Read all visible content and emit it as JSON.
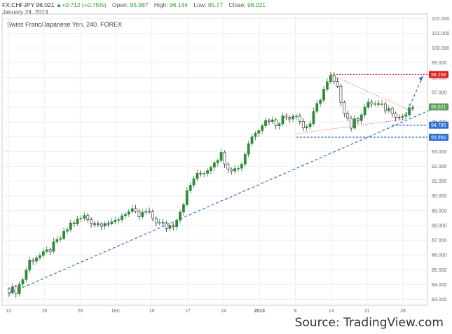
{
  "header": {
    "symbol": "FX:CHFJPY",
    "last": "96.021",
    "change": "+0.712 (+0.75%)",
    "open_label": "Open:",
    "open": "95.987",
    "high_label": "High:",
    "high": "96.144",
    "low_label": "Low:",
    "low": "95.77",
    "close_label": "Close:",
    "close": "96.021",
    "date": "January 24, 2013"
  },
  "chart_title": "Swiss Franc/Japanese Yen, 240, FOREX",
  "source": "Source: TradingView.com",
  "colors": {
    "up": "#2e8b3a",
    "down": "#222222",
    "trend": "#2f6fd6",
    "resistance": "#e02020",
    "price_tag": "#5aa05a",
    "support_tag": "#2f6fd6"
  },
  "chart_data": {
    "type": "candlestick",
    "title": "Swiss Franc/Japanese Yen, 240, FOREX",
    "x_ticks": [
      "13",
      "19",
      "26",
      "Dec",
      "10",
      "17",
      "24",
      "2013",
      "8",
      "14",
      "21",
      "28"
    ],
    "y_ticks": [
      "83.000",
      "84.000",
      "85.000",
      "86.000",
      "87.000",
      "88.000",
      "89.000",
      "90.000",
      "91.000",
      "92.000",
      "93.000",
      "94.000",
      "95.000",
      "96.000",
      "97.000",
      "98.000",
      "99.000",
      "100.000",
      "101.000",
      "102.000"
    ],
    "ylim": [
      82.6,
      102.3
    ],
    "close_path": [
      [
        0,
        83.7
      ],
      [
        2,
        83.6
      ],
      [
        4,
        84.4
      ],
      [
        6,
        85.6
      ],
      [
        8,
        85.9
      ],
      [
        10,
        86.0
      ],
      [
        12,
        86.4
      ],
      [
        14,
        86.9
      ],
      [
        16,
        87.4
      ],
      [
        18,
        88.1
      ],
      [
        20,
        88.3
      ],
      [
        22,
        88.6
      ],
      [
        24,
        88.3
      ],
      [
        26,
        88.1
      ],
      [
        28,
        88.3
      ],
      [
        30,
        88.0
      ],
      [
        32,
        88.5
      ],
      [
        34,
        88.9
      ],
      [
        36,
        88.9
      ],
      [
        38,
        88.6
      ],
      [
        40,
        88.9
      ],
      [
        42,
        88.5
      ],
      [
        44,
        88.1
      ],
      [
        46,
        87.9
      ],
      [
        48,
        88.1
      ],
      [
        50,
        89.0
      ],
      [
        52,
        90.2
      ],
      [
        54,
        91.2
      ],
      [
        56,
        91.5
      ],
      [
        58,
        91.8
      ],
      [
        60,
        92.4
      ],
      [
        62,
        92.8
      ],
      [
        64,
        92.0
      ],
      [
        66,
        91.8
      ],
      [
        68,
        92.2
      ],
      [
        70,
        93.6
      ],
      [
        72,
        94.4
      ],
      [
        74,
        94.9
      ],
      [
        76,
        95.2
      ],
      [
        78,
        94.9
      ],
      [
        80,
        95.3
      ],
      [
        82,
        95.4
      ],
      [
        84,
        95.6
      ],
      [
        86,
        94.6
      ],
      [
        88,
        94.9
      ],
      [
        90,
        96.1
      ],
      [
        92,
        97.2
      ],
      [
        94,
        98.0
      ],
      [
        96,
        97.2
      ],
      [
        98,
        95.8
      ],
      [
        100,
        94.7
      ],
      [
        102,
        95.3
      ],
      [
        104,
        96.0
      ],
      [
        106,
        96.3
      ],
      [
        108,
        96.1
      ],
      [
        110,
        95.9
      ],
      [
        112,
        95.8
      ],
      [
        114,
        95.3
      ],
      [
        116,
        95.5
      ],
      [
        118,
        96.0
      ]
    ],
    "annotations": [
      {
        "label": "98.208",
        "price": 98.208,
        "kind": "resistance"
      },
      {
        "label": "96.021",
        "price": 96.021,
        "kind": "last"
      },
      {
        "label": "94.785",
        "price": 94.785,
        "kind": "support"
      },
      {
        "label": "93.964",
        "price": 93.964,
        "kind": "support"
      }
    ],
    "trendlines": [
      {
        "kind": "uptrend",
        "from": [
          0,
          83.4
        ],
        "to": [
          126,
          96.1
        ]
      },
      {
        "kind": "triangle-upper",
        "from": [
          94,
          98.2
        ],
        "to": [
          117,
          95.8
        ]
      },
      {
        "kind": "triangle-lower",
        "from": [
          84,
          94.2
        ],
        "to": [
          116,
          95.2
        ]
      },
      {
        "kind": "projection",
        "from": [
          116,
          95.5
        ],
        "to": [
          121,
          98.1
        ]
      }
    ]
  }
}
